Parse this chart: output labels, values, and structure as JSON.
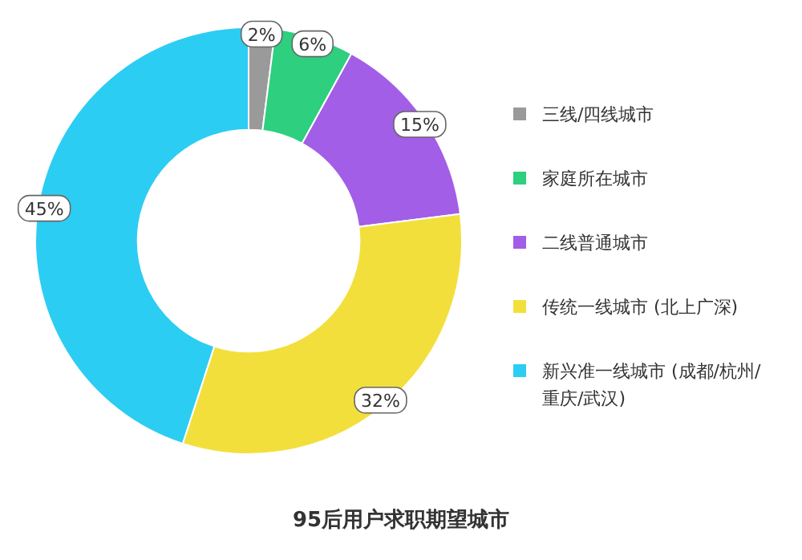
{
  "chart_data": {
    "type": "donut",
    "title": "95后用户求职期望城市",
    "categories": [
      "三线/四线城市",
      "家庭所在城市",
      "二线普通城市",
      "传统一线城市 (北上广深)",
      "新兴准一线城市 (成都/杭州/重庆/武汉)"
    ],
    "values": [
      2,
      6,
      15,
      32,
      45
    ],
    "value_labels": [
      "2%",
      "6%",
      "15%",
      "32%",
      "45%"
    ],
    "colors": [
      "#9a9a9a",
      "#2ecf7e",
      "#a25ee6",
      "#f3df3c",
      "#2ccdf2"
    ],
    "legend": "right"
  }
}
